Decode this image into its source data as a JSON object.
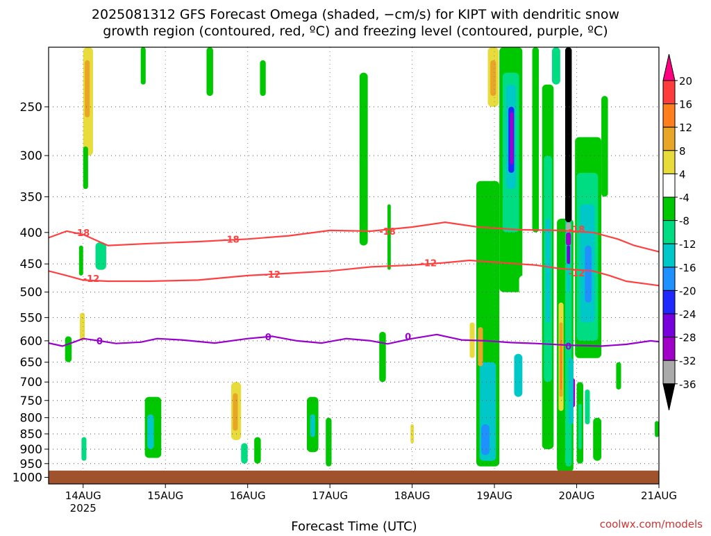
{
  "chart_data": {
    "type": "heatmap",
    "title_lines": [
      "2025081312 GFS Forecast Omega (shaded, −cm/s) for KIPT with dendritic snow",
      "growth region (contoured, red, ºC) and freezing level (contoured, purple, ºC)"
    ],
    "xlabel": "Forecast Time (UTC)",
    "ylabel": "",
    "x_ticks": [
      {
        "label": "14AUG",
        "sub": "2025",
        "t": 1
      },
      {
        "label": "15AUG",
        "sub": "",
        "t": 2
      },
      {
        "label": "16AUG",
        "sub": "",
        "t": 3
      },
      {
        "label": "17AUG",
        "sub": "",
        "t": 4
      },
      {
        "label": "18AUG",
        "sub": "",
        "t": 5
      },
      {
        "label": "19AUG",
        "sub": "",
        "t": 6
      },
      {
        "label": "20AUG",
        "sub": "",
        "t": 7
      },
      {
        "label": "21AUG",
        "sub": "",
        "t": 8
      }
    ],
    "xlim": [
      0.58,
      8.0
    ],
    "y_ticks": [
      250,
      300,
      350,
      400,
      450,
      500,
      550,
      600,
      650,
      700,
      750,
      800,
      850,
      900,
      950,
      1000
    ],
    "ylim": [
      200,
      1025
    ],
    "y_scale": "log",
    "grid": "dotted",
    "colorbar": {
      "labels": [
        "20",
        "16",
        "12",
        "8",
        "4",
        "-4",
        "-8",
        "-12",
        "-16",
        "-20",
        "-24",
        "-28",
        "-32",
        "-36"
      ],
      "colors": [
        "#ff0080",
        "#ff3c3c",
        "#ff7f1e",
        "#e8a628",
        "#e8dc3c",
        "#ffffff",
        "#00c800",
        "#00dc82",
        "#00c8c8",
        "#1e90ff",
        "#1e28ff",
        "#7800dc",
        "#a000c8",
        "#aaaaaa",
        "#000000"
      ]
    },
    "contours": [
      {
        "label": "-18",
        "color": "#ff4040",
        "points": [
          [
            0.58,
            408
          ],
          [
            0.8,
            398
          ],
          [
            1.0,
            403
          ],
          [
            1.3,
            420
          ],
          [
            1.8,
            417
          ],
          [
            2.4,
            414
          ],
          [
            3.0,
            410
          ],
          [
            3.5,
            405
          ],
          [
            4.0,
            397
          ],
          [
            4.5,
            398
          ],
          [
            5.0,
            392
          ],
          [
            5.4,
            385
          ],
          [
            5.8,
            392
          ],
          [
            6.3,
            396
          ],
          [
            6.8,
            397
          ],
          [
            7.2,
            400
          ],
          [
            7.5,
            410
          ],
          [
            7.7,
            420
          ],
          [
            8.0,
            430
          ]
        ],
        "label_at": [
          [
            0.98,
            400
          ],
          [
            2.8,
            410
          ],
          [
            4.7,
            398
          ],
          [
            7.0,
            395
          ]
        ]
      },
      {
        "label": "-12",
        "color": "#ff4040",
        "points": [
          [
            0.58,
            462
          ],
          [
            0.8,
            470
          ],
          [
            1.0,
            478
          ],
          [
            1.3,
            480
          ],
          [
            1.8,
            480
          ],
          [
            2.4,
            478
          ],
          [
            3.0,
            470
          ],
          [
            3.5,
            466
          ],
          [
            4.0,
            462
          ],
          [
            4.5,
            455
          ],
          [
            5.0,
            452
          ],
          [
            5.4,
            448
          ],
          [
            5.7,
            444
          ],
          [
            6.0,
            447
          ],
          [
            6.5,
            452
          ],
          [
            6.8,
            458
          ],
          [
            7.2,
            462
          ],
          [
            7.4,
            470
          ],
          [
            7.6,
            480
          ],
          [
            8.0,
            488
          ]
        ],
        "label_at": [
          [
            1.1,
            475
          ],
          [
            3.3,
            468
          ],
          [
            5.2,
            448
          ],
          [
            7.0,
            465
          ]
        ]
      },
      {
        "label": "0",
        "color": "#9900cc",
        "points": [
          [
            0.58,
            605
          ],
          [
            0.75,
            612
          ],
          [
            0.9,
            602
          ],
          [
            1.0,
            595
          ],
          [
            1.2,
            600
          ],
          [
            1.4,
            606
          ],
          [
            1.7,
            603
          ],
          [
            1.9,
            595
          ],
          [
            2.2,
            598
          ],
          [
            2.6,
            605
          ],
          [
            3.0,
            595
          ],
          [
            3.3,
            590
          ],
          [
            3.6,
            600
          ],
          [
            3.9,
            605
          ],
          [
            4.2,
            595
          ],
          [
            4.5,
            600
          ],
          [
            4.7,
            607
          ],
          [
            5.0,
            595
          ],
          [
            5.3,
            586
          ],
          [
            5.6,
            598
          ],
          [
            5.9,
            600
          ],
          [
            6.2,
            604
          ],
          [
            6.5,
            606
          ],
          [
            6.9,
            610
          ],
          [
            7.3,
            612
          ],
          [
            7.6,
            608
          ],
          [
            7.9,
            600
          ],
          [
            8.0,
            602
          ]
        ],
        "label_at": [
          [
            1.2,
            600
          ],
          [
            3.25,
            591
          ],
          [
            4.95,
            590
          ],
          [
            6.9,
            612
          ]
        ]
      }
    ],
    "ground_pressure": 975,
    "ground_color": "#a0522d",
    "cells": [
      {
        "t0": 0.62,
        "t1": 0.8,
        "p0": 205,
        "p1": 330,
        "v": "4"
      },
      {
        "t0": 0.85,
        "t1": 0.95,
        "p0": 210,
        "p1": 280,
        "v": "4"
      },
      {
        "t0": 1.0,
        "t1": 1.12,
        "p0": 200,
        "p1": 300,
        "v": "8"
      },
      {
        "t0": 1.02,
        "t1": 1.08,
        "p0": 210,
        "p1": 260,
        "v": "12"
      },
      {
        "t0": 1.25,
        "t1": 1.4,
        "p0": 200,
        "p1": 260,
        "v": "4"
      },
      {
        "t0": 1.42,
        "t1": 1.48,
        "p0": 300,
        "p1": 380,
        "v": "4"
      },
      {
        "t0": 1.7,
        "t1": 1.76,
        "p0": 200,
        "p1": 230,
        "v": "-4"
      },
      {
        "t0": 2.0,
        "t1": 2.08,
        "p0": 200,
        "p1": 260,
        "v": "4"
      },
      {
        "t0": 2.5,
        "t1": 2.58,
        "p0": 200,
        "p1": 240,
        "v": "-4"
      },
      {
        "t0": 2.7,
        "t1": 2.78,
        "p0": 260,
        "p1": 360,
        "v": "4"
      },
      {
        "t0": 3.15,
        "t1": 3.22,
        "p0": 210,
        "p1": 240,
        "v": "-4"
      },
      {
        "t0": 1.0,
        "t1": 1.06,
        "p0": 290,
        "p1": 340,
        "v": "-4"
      },
      {
        "t0": 1.15,
        "t1": 1.28,
        "p0": 415,
        "p1": 460,
        "v": "-8"
      },
      {
        "t0": 0.95,
        "t1": 1.0,
        "p0": 420,
        "p1": 470,
        "v": "-4"
      },
      {
        "t0": 0.96,
        "t1": 1.02,
        "p0": 540,
        "p1": 600,
        "v": "8"
      },
      {
        "t0": 0.78,
        "t1": 0.86,
        "p0": 590,
        "p1": 650,
        "v": "-4"
      },
      {
        "t0": 1.9,
        "t1": 1.98,
        "p0": 380,
        "p1": 430,
        "v": "4"
      },
      {
        "t0": 1.96,
        "t1": 2.04,
        "p0": 560,
        "p1": 640,
        "v": "4"
      },
      {
        "t0": 1.75,
        "t1": 1.95,
        "p0": 740,
        "p1": 930,
        "v": "-4"
      },
      {
        "t0": 1.78,
        "t1": 1.86,
        "p0": 790,
        "p1": 900,
        "v": "-12"
      },
      {
        "t0": 0.98,
        "t1": 1.04,
        "p0": 860,
        "p1": 940,
        "v": "-8"
      },
      {
        "t0": 2.08,
        "t1": 2.18,
        "p0": 720,
        "p1": 820,
        "v": "4"
      },
      {
        "t0": 2.8,
        "t1": 2.92,
        "p0": 700,
        "p1": 870,
        "v": "8"
      },
      {
        "t0": 2.82,
        "t1": 2.88,
        "p0": 730,
        "p1": 840,
        "v": "12"
      },
      {
        "t0": 2.92,
        "t1": 3.0,
        "p0": 880,
        "p1": 950,
        "v": "-8"
      },
      {
        "t0": 3.08,
        "t1": 3.16,
        "p0": 860,
        "p1": 950,
        "v": "-4"
      },
      {
        "t0": 3.1,
        "t1": 3.18,
        "p0": 480,
        "p1": 600,
        "v": "4"
      },
      {
        "t0": 3.6,
        "t1": 3.68,
        "p0": 550,
        "p1": 650,
        "v": "4"
      },
      {
        "t0": 3.72,
        "t1": 3.86,
        "p0": 740,
        "p1": 910,
        "v": "-4"
      },
      {
        "t0": 3.76,
        "t1": 3.82,
        "p0": 790,
        "p1": 860,
        "v": "-12"
      },
      {
        "t0": 3.95,
        "t1": 4.02,
        "p0": 800,
        "p1": 960,
        "v": "-4"
      },
      {
        "t0": 4.12,
        "t1": 4.22,
        "p0": 200,
        "p1": 350,
        "v": "4"
      },
      {
        "t0": 4.28,
        "t1": 4.36,
        "p0": 220,
        "p1": 300,
        "v": "4"
      },
      {
        "t0": 4.36,
        "t1": 4.46,
        "p0": 220,
        "p1": 420,
        "v": "-4"
      },
      {
        "t0": 4.48,
        "t1": 4.58,
        "p0": 430,
        "p1": 600,
        "v": "4"
      },
      {
        "t0": 4.6,
        "t1": 4.68,
        "p0": 580,
        "p1": 700,
        "v": "-4"
      },
      {
        "t0": 4.64,
        "t1": 4.78,
        "p0": 200,
        "p1": 340,
        "v": "4"
      },
      {
        "t0": 4.7,
        "t1": 4.74,
        "p0": 360,
        "p1": 460,
        "v": "-4"
      },
      {
        "t0": 4.92,
        "t1": 5.02,
        "p0": 200,
        "p1": 250,
        "v": "4"
      },
      {
        "t0": 5.02,
        "t1": 5.12,
        "p0": 540,
        "p1": 640,
        "v": "4"
      },
      {
        "t0": 4.92,
        "t1": 5.0,
        "p0": 760,
        "p1": 870,
        "v": "4"
      },
      {
        "t0": 4.98,
        "t1": 5.02,
        "p0": 820,
        "p1": 880,
        "v": "8"
      },
      {
        "t0": 5.38,
        "t1": 5.48,
        "p0": 220,
        "p1": 400,
        "v": "4"
      },
      {
        "t0": 5.7,
        "t1": 5.76,
        "p0": 300,
        "p1": 360,
        "v": "4"
      },
      {
        "t0": 5.7,
        "t1": 5.76,
        "p0": 560,
        "p1": 640,
        "v": "8"
      },
      {
        "t0": 5.78,
        "t1": 6.06,
        "p0": 330,
        "p1": 960,
        "v": "-4"
      },
      {
        "t0": 5.82,
        "t1": 6.02,
        "p0": 650,
        "p1": 940,
        "v": "-12"
      },
      {
        "t0": 5.84,
        "t1": 5.94,
        "p0": 820,
        "p1": 920,
        "v": "-16"
      },
      {
        "t0": 5.8,
        "t1": 5.86,
        "p0": 570,
        "p1": 660,
        "v": "12"
      },
      {
        "t0": 5.92,
        "t1": 6.05,
        "p0": 200,
        "p1": 250,
        "v": "8"
      },
      {
        "t0": 5.95,
        "t1": 6.02,
        "p0": 210,
        "p1": 240,
        "v": "12"
      },
      {
        "t0": 6.06,
        "t1": 6.34,
        "p0": 200,
        "p1": 500,
        "v": "-4"
      },
      {
        "t0": 6.1,
        "t1": 6.3,
        "p0": 220,
        "p1": 400,
        "v": "-8"
      },
      {
        "t0": 6.14,
        "t1": 6.26,
        "p0": 230,
        "p1": 340,
        "v": "-12"
      },
      {
        "t0": 6.17,
        "t1": 6.24,
        "p0": 250,
        "p1": 320,
        "v": "-20"
      },
      {
        "t0": 6.19,
        "t1": 6.23,
        "p0": 255,
        "p1": 310,
        "v": "-28"
      },
      {
        "t0": 6.24,
        "t1": 6.34,
        "p0": 630,
        "p1": 740,
        "v": "-12"
      },
      {
        "t0": 6.3,
        "t1": 6.4,
        "p0": 470,
        "p1": 560,
        "v": "4"
      },
      {
        "t0": 6.46,
        "t1": 6.54,
        "p0": 200,
        "p1": 400,
        "v": "-4"
      },
      {
        "t0": 6.58,
        "t1": 6.72,
        "p0": 230,
        "p1": 900,
        "v": "-4"
      },
      {
        "t0": 6.6,
        "t1": 6.7,
        "p0": 300,
        "p1": 700,
        "v": "-8"
      },
      {
        "t0": 6.62,
        "t1": 6.68,
        "p0": 380,
        "p1": 560,
        "v": "-12"
      },
      {
        "t0": 6.7,
        "t1": 6.8,
        "p0": 200,
        "p1": 230,
        "v": "-8"
      },
      {
        "t0": 6.76,
        "t1": 6.96,
        "p0": 380,
        "p1": 980,
        "v": "-4"
      },
      {
        "t0": 6.78,
        "t1": 6.84,
        "p0": 520,
        "p1": 780,
        "v": "8"
      },
      {
        "t0": 6.79,
        "t1": 6.83,
        "p0": 560,
        "p1": 740,
        "v": "12"
      },
      {
        "t0": 6.8,
        "t1": 6.82,
        "p0": 600,
        "p1": 720,
        "v": "16"
      },
      {
        "t0": 6.86,
        "t1": 6.94,
        "p0": 330,
        "p1": 960,
        "v": "-8"
      },
      {
        "t0": 6.88,
        "t1": 6.92,
        "p0": 380,
        "p1": 500,
        "v": "-12"
      },
      {
        "t0": 6.86,
        "t1": 6.94,
        "p0": 200,
        "p1": 385,
        "v": "-36"
      },
      {
        "t0": 6.87,
        "t1": 6.93,
        "p0": 385,
        "p1": 400,
        "v": "-32"
      },
      {
        "t0": 6.87,
        "t1": 6.93,
        "p0": 400,
        "p1": 420,
        "v": "-28"
      },
      {
        "t0": 6.88,
        "t1": 6.92,
        "p0": 420,
        "p1": 450,
        "v": "-24"
      },
      {
        "t0": 6.92,
        "t1": 6.98,
        "p0": 690,
        "p1": 770,
        "v": "-28"
      },
      {
        "t0": 6.9,
        "t1": 6.96,
        "p0": 640,
        "p1": 820,
        "v": "-12"
      },
      {
        "t0": 6.98,
        "t1": 7.3,
        "p0": 280,
        "p1": 640,
        "v": "-4"
      },
      {
        "t0": 7.0,
        "t1": 7.26,
        "p0": 320,
        "p1": 600,
        "v": "-8"
      },
      {
        "t0": 7.04,
        "t1": 7.22,
        "p0": 360,
        "p1": 560,
        "v": "-12"
      },
      {
        "t0": 7.1,
        "t1": 7.18,
        "p0": 420,
        "p1": 520,
        "v": "-16"
      },
      {
        "t0": 7.0,
        "t1": 7.08,
        "p0": 700,
        "p1": 950,
        "v": "-4"
      },
      {
        "t0": 7.02,
        "t1": 7.06,
        "p0": 760,
        "p1": 900,
        "v": "-8"
      },
      {
        "t0": 7.1,
        "t1": 7.16,
        "p0": 720,
        "p1": 820,
        "v": "-8"
      },
      {
        "t0": 7.16,
        "t1": 7.22,
        "p0": 760,
        "p1": 830,
        "v": "4"
      },
      {
        "t0": 7.2,
        "t1": 7.3,
        "p0": 800,
        "p1": 940,
        "v": "-4"
      },
      {
        "t0": 7.24,
        "t1": 7.34,
        "p0": 200,
        "p1": 260,
        "v": "4"
      },
      {
        "t0": 7.3,
        "t1": 7.38,
        "p0": 240,
        "p1": 350,
        "v": "-4"
      },
      {
        "t0": 7.36,
        "t1": 7.46,
        "p0": 500,
        "p1": 570,
        "v": "4"
      },
      {
        "t0": 7.48,
        "t1": 7.54,
        "p0": 650,
        "p1": 720,
        "v": "-4"
      },
      {
        "t0": 7.52,
        "t1": 7.6,
        "p0": 220,
        "p1": 300,
        "v": "4"
      },
      {
        "t0": 7.62,
        "t1": 7.7,
        "p0": 200,
        "p1": 220,
        "v": "4"
      },
      {
        "t0": 7.95,
        "t1": 8.0,
        "p0": 810,
        "p1": 860,
        "v": "-4"
      }
    ]
  },
  "credit": "coolwx.com/models"
}
